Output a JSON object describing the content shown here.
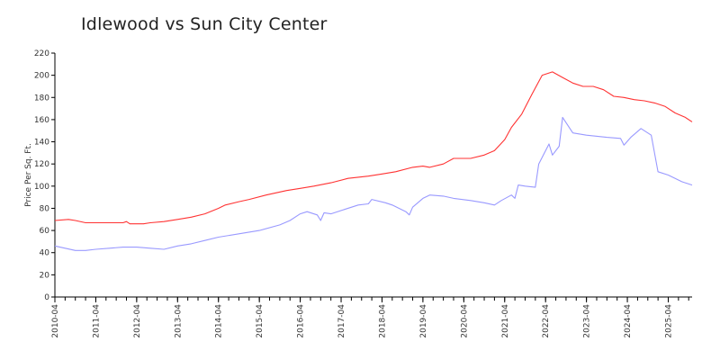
{
  "chart_data": {
    "type": "line",
    "title": "Idlewood vs Sun City Center",
    "xlabel": "",
    "ylabel": "Price Per Sq. Ft.",
    "ylim": [
      0,
      220
    ],
    "yticks": [
      0,
      20,
      40,
      60,
      80,
      100,
      120,
      140,
      160,
      180,
      200,
      220
    ],
    "xlim": [
      "2010-04",
      "2025-11"
    ],
    "xtick_labels": [
      "2010-04",
      "2011-04",
      "2012-04",
      "2013-04",
      "2014-04",
      "2015-04",
      "2016-04",
      "2017-04",
      "2018-04",
      "2019-04",
      "2020-04",
      "2021-04",
      "2022-04",
      "2023-04",
      "2024-04",
      "2025-04"
    ],
    "grid": false,
    "legend": "none",
    "series": [
      {
        "color": "#ff3333",
        "points": [
          [
            "2010-04",
            69
          ],
          [
            "2010-08",
            70
          ],
          [
            "2010-10",
            69
          ],
          [
            "2011-01",
            67
          ],
          [
            "2011-04",
            67
          ],
          [
            "2011-08",
            67
          ],
          [
            "2011-12",
            67
          ],
          [
            "2012-01",
            68
          ],
          [
            "2012-02",
            66
          ],
          [
            "2012-06",
            66
          ],
          [
            "2012-08",
            67
          ],
          [
            "2012-12",
            68
          ],
          [
            "2013-04",
            70
          ],
          [
            "2013-08",
            72
          ],
          [
            "2013-12",
            75
          ],
          [
            "2014-04",
            80
          ],
          [
            "2014-06",
            83
          ],
          [
            "2014-10",
            86
          ],
          [
            "2015-01",
            88
          ],
          [
            "2015-06",
            92
          ],
          [
            "2015-12",
            96
          ],
          [
            "2016-04",
            98
          ],
          [
            "2016-08",
            100
          ],
          [
            "2017-01",
            103
          ],
          [
            "2017-06",
            107
          ],
          [
            "2017-12",
            109
          ],
          [
            "2018-04",
            111
          ],
          [
            "2018-08",
            113
          ],
          [
            "2019-01",
            117
          ],
          [
            "2019-04",
            118
          ],
          [
            "2019-06",
            117
          ],
          [
            "2019-10",
            120
          ],
          [
            "2020-01",
            125
          ],
          [
            "2020-06",
            125
          ],
          [
            "2020-10",
            128
          ],
          [
            "2021-01",
            132
          ],
          [
            "2021-04",
            142
          ],
          [
            "2021-06",
            153
          ],
          [
            "2021-09",
            165
          ],
          [
            "2021-12",
            183
          ],
          [
            "2022-03",
            200
          ],
          [
            "2022-06",
            203
          ],
          [
            "2022-09",
            198
          ],
          [
            "2022-12",
            193
          ],
          [
            "2023-03",
            190
          ],
          [
            "2023-06",
            190
          ],
          [
            "2023-09",
            187
          ],
          [
            "2023-12",
            181
          ],
          [
            "2024-03",
            180
          ],
          [
            "2024-06",
            178
          ],
          [
            "2024-09",
            177
          ],
          [
            "2024-12",
            175
          ],
          [
            "2025-03",
            172
          ],
          [
            "2025-06",
            166
          ],
          [
            "2025-09",
            162
          ],
          [
            "2025-11",
            158
          ]
        ]
      },
      {
        "color": "#9999ff",
        "points": [
          [
            "2010-04",
            46
          ],
          [
            "2010-10",
            42
          ],
          [
            "2011-01",
            42
          ],
          [
            "2011-04",
            43
          ],
          [
            "2011-08",
            44
          ],
          [
            "2011-12",
            45
          ],
          [
            "2012-04",
            45
          ],
          [
            "2012-08",
            44
          ],
          [
            "2012-12",
            43
          ],
          [
            "2013-04",
            46
          ],
          [
            "2013-08",
            48
          ],
          [
            "2013-12",
            51
          ],
          [
            "2014-04",
            54
          ],
          [
            "2014-10",
            57
          ],
          [
            "2015-04",
            60
          ],
          [
            "2015-10",
            65
          ],
          [
            "2016-01",
            69
          ],
          [
            "2016-04",
            75
          ],
          [
            "2016-06",
            77
          ],
          [
            "2016-09",
            74
          ],
          [
            "2016-10",
            69
          ],
          [
            "2016-11",
            76
          ],
          [
            "2017-01",
            75
          ],
          [
            "2017-05",
            79
          ],
          [
            "2017-09",
            83
          ],
          [
            "2017-12",
            84
          ],
          [
            "2018-01",
            88
          ],
          [
            "2018-05",
            85
          ],
          [
            "2018-07",
            83
          ],
          [
            "2018-11",
            77
          ],
          [
            "2018-12",
            74
          ],
          [
            "2019-01",
            81
          ],
          [
            "2019-04",
            89
          ],
          [
            "2019-06",
            92
          ],
          [
            "2019-10",
            91
          ],
          [
            "2020-01",
            89
          ],
          [
            "2020-06",
            87
          ],
          [
            "2020-10",
            85
          ],
          [
            "2021-01",
            83
          ],
          [
            "2021-03",
            87
          ],
          [
            "2021-06",
            92
          ],
          [
            "2021-07",
            89
          ],
          [
            "2021-08",
            101
          ],
          [
            "2021-10",
            100
          ],
          [
            "2022-01",
            99
          ],
          [
            "2022-02",
            120
          ],
          [
            "2022-05",
            138
          ],
          [
            "2022-06",
            128
          ],
          [
            "2022-08",
            136
          ],
          [
            "2022-09",
            162
          ],
          [
            "2022-12",
            148
          ],
          [
            "2023-04",
            146
          ],
          [
            "2023-10",
            144
          ],
          [
            "2024-02",
            143
          ],
          [
            "2024-03",
            137
          ],
          [
            "2024-05",
            144
          ],
          [
            "2024-08",
            152
          ],
          [
            "2024-11",
            146
          ],
          [
            "2025-01",
            113
          ],
          [
            "2025-04",
            110
          ],
          [
            "2025-08",
            104
          ],
          [
            "2025-11",
            101
          ]
        ]
      }
    ]
  }
}
